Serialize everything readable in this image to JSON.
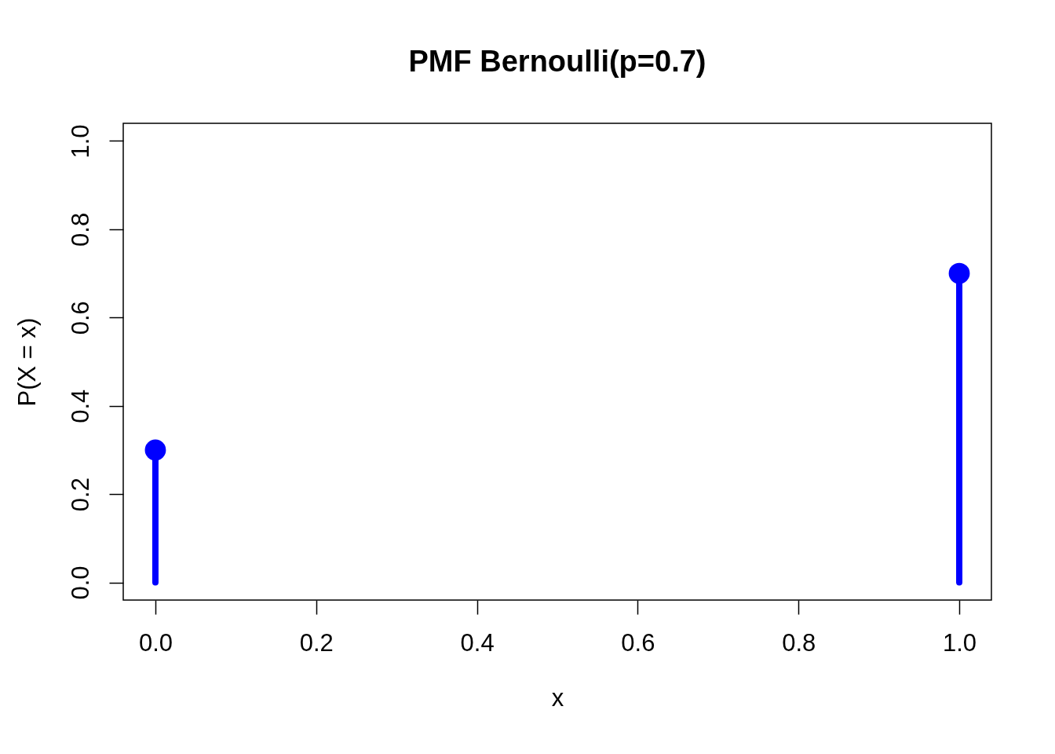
{
  "chart_data": {
    "type": "lollipop",
    "title": "PMF Bernoulli(p=0.7)",
    "xlabel": "x",
    "ylabel": "P(X = x)",
    "x": [
      0,
      1
    ],
    "values": [
      0.3,
      0.7
    ],
    "color": "#0000ff",
    "marker": "circle",
    "xlim": [
      -0.04,
      1.04
    ],
    "ylim": [
      -0.04,
      1.04
    ],
    "xticks": [
      {
        "value": 0,
        "label": "0.0"
      },
      {
        "value": 0.2,
        "label": "0.2"
      },
      {
        "value": 0.4,
        "label": "0.4"
      },
      {
        "value": 0.6,
        "label": "0.6"
      },
      {
        "value": 0.8,
        "label": "0.8"
      },
      {
        "value": 1,
        "label": "1.0"
      }
    ],
    "yticks": [
      {
        "value": 0,
        "label": "0.0"
      },
      {
        "value": 0.2,
        "label": "0.2"
      },
      {
        "value": 0.4,
        "label": "0.4"
      },
      {
        "value": 0.6,
        "label": "0.6"
      },
      {
        "value": 0.8,
        "label": "0.8"
      },
      {
        "value": 1,
        "label": "1.0"
      }
    ]
  }
}
